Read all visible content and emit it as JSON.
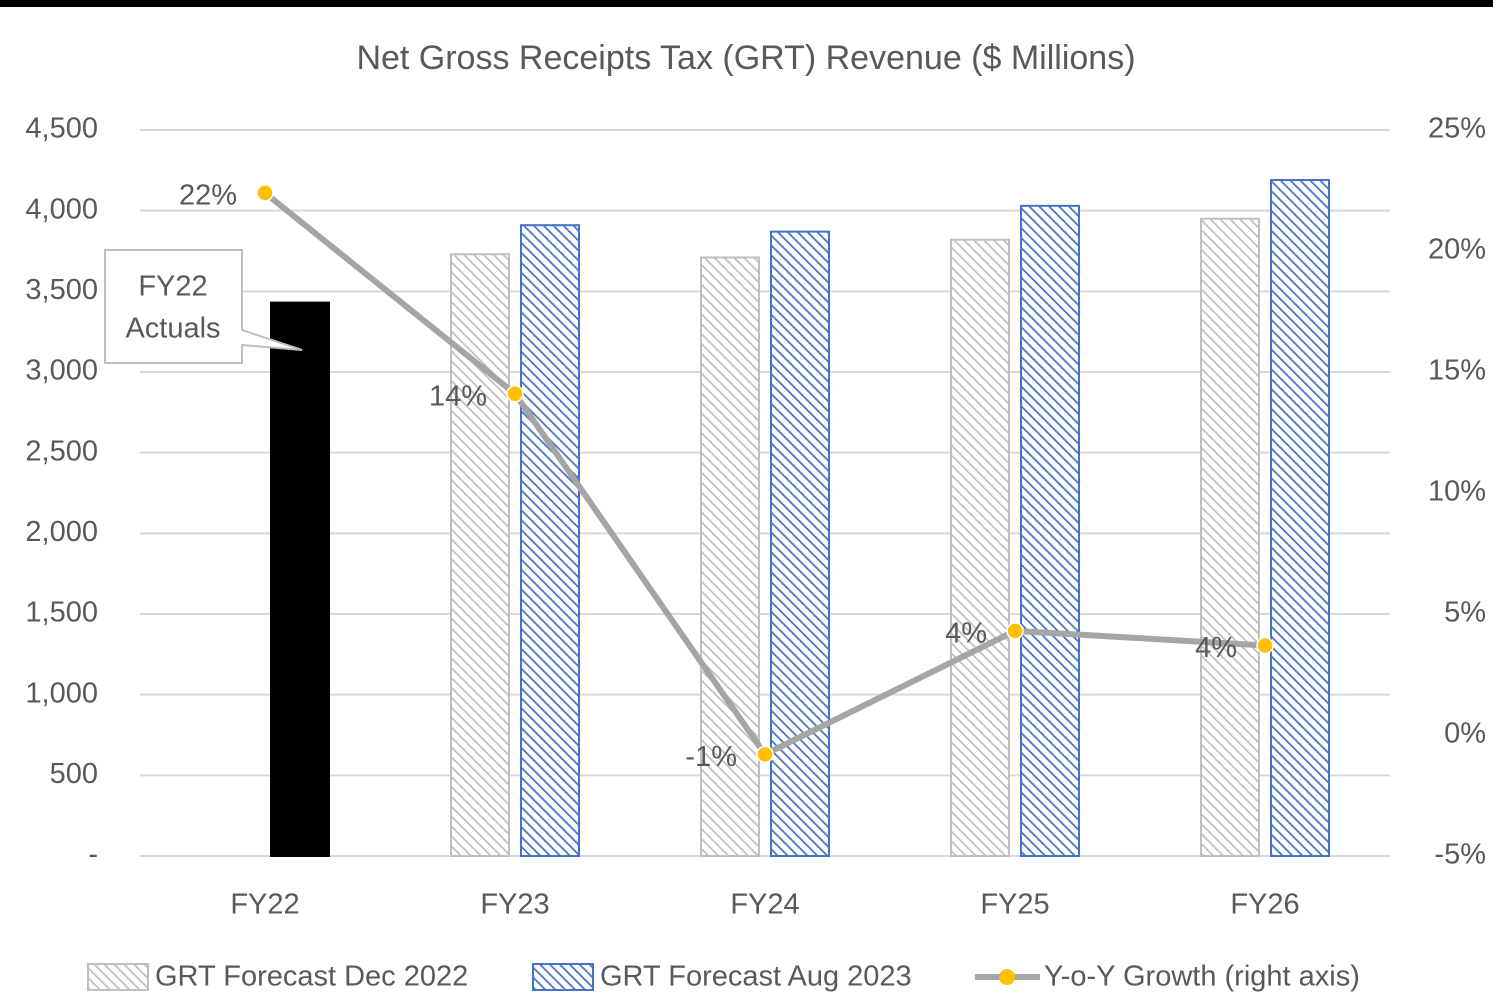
{
  "chart_data": {
    "type": "bar",
    "title": "Net Gross Receipts Tax (GRT) Revenue ($ Millions)",
    "categories": [
      "FY22",
      "FY23",
      "FY24",
      "FY25",
      "FY26"
    ],
    "series": [
      {
        "name": "GRT Forecast Dec 2022",
        "color": "#bfbfbf",
        "pattern": "hatch",
        "values": [
          null,
          3730,
          3710,
          3820,
          3950
        ]
      },
      {
        "name": "GRT Forecast Aug 2023",
        "color": "#4472c4",
        "pattern": "hatch",
        "values": [
          3430,
          3910,
          3870,
          4030,
          4190
        ],
        "point_colors": [
          "#000000",
          null,
          null,
          null,
          null
        ]
      },
      {
        "name": "Y-o-Y Growth (right axis)",
        "type": "line",
        "axis": "y2",
        "color": "#a5a5a5",
        "marker_color": "#ffc000",
        "values": [
          22.4,
          14.1,
          -0.8,
          4.3,
          3.7
        ],
        "value_labels": [
          "22%",
          "14%",
          "-1%",
          "4%",
          "4%"
        ]
      }
    ],
    "annotation": [
      "FY22",
      "Actuals"
    ],
    "ylim": [
      0,
      4500
    ],
    "yticks": [
      {
        "value": 0,
        "label": "-"
      },
      500,
      {
        "value": 1000,
        "label": "1,000"
      },
      {
        "value": 1500,
        "label": "1,500"
      },
      {
        "value": 2000,
        "label": "2,000"
      },
      {
        "value": 2500,
        "label": "2,500"
      },
      {
        "value": 3000,
        "label": "3,000"
      },
      {
        "value": 3500,
        "label": "3,500"
      },
      {
        "value": 4000,
        "label": "4,000"
      },
      {
        "value": 4500,
        "label": "4,500"
      }
    ],
    "y2lim": [
      -5,
      25
    ],
    "y2ticks": [
      {
        "value": -5,
        "label": "-5%"
      },
      {
        "value": 0,
        "label": "0%"
      },
      {
        "value": 5,
        "label": "5%"
      },
      {
        "value": 10,
        "label": "10%"
      },
      {
        "value": 15,
        "label": "15%"
      },
      {
        "value": 20,
        "label": "20%"
      },
      {
        "value": 25,
        "label": "25%"
      }
    ],
    "grid": true,
    "legend": "bottom"
  }
}
